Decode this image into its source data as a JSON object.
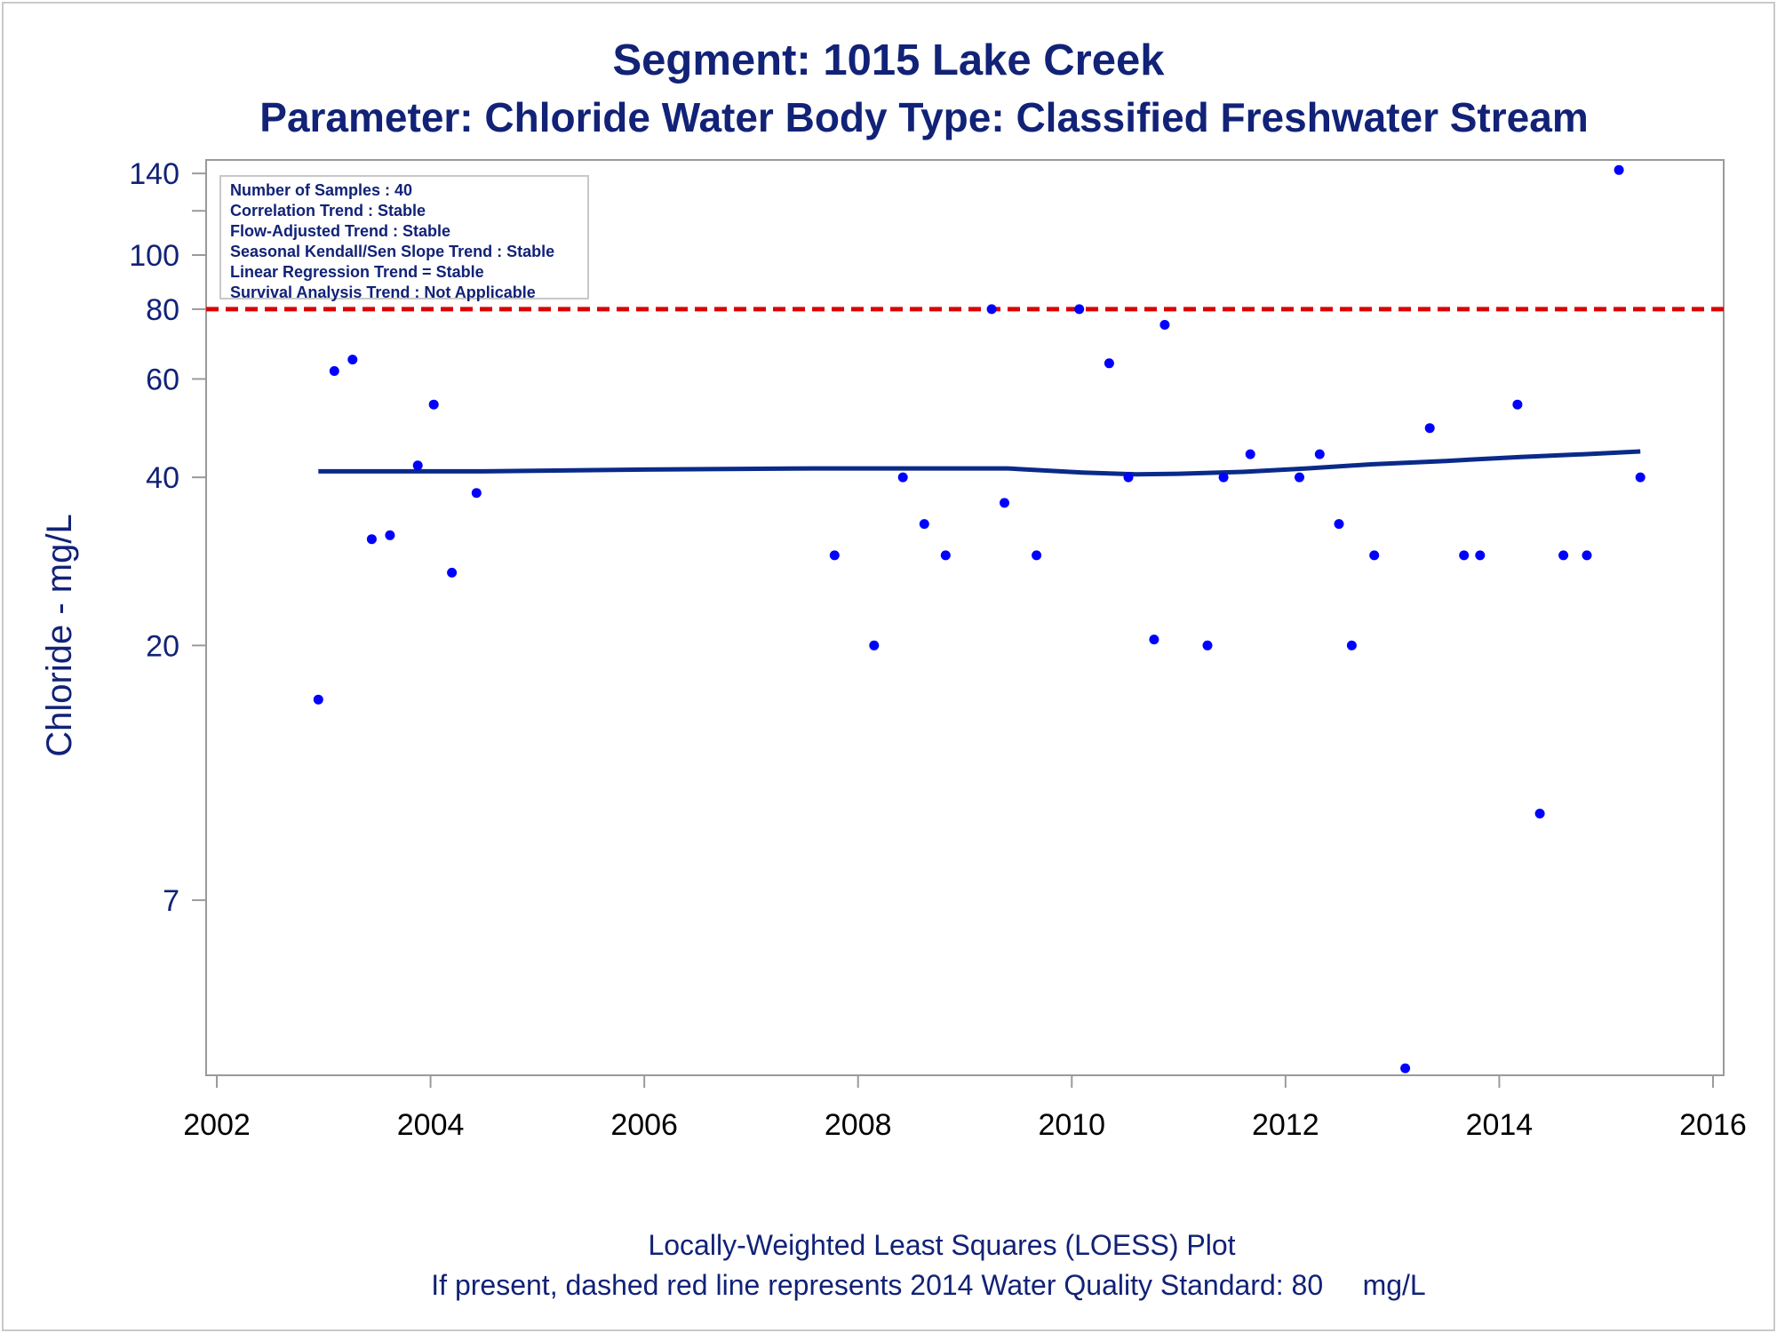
{
  "title": "Segment: 1015  Lake Creek",
  "subtitle": "Parameter: Chloride   Water Body Type: Classified Freshwater Stream",
  "stats_box": [
    "Number of Samples : 40",
    "Correlation Trend : Stable",
    "Flow-Adjusted Trend : Stable",
    "Seasonal Kendall/Sen Slope Trend : Stable",
    "Linear Regression Trend = Stable",
    "Survival Analysis Trend : Not Applicable"
  ],
  "footnote_1": "Locally-Weighted Least Squares (LOESS) Plot",
  "footnote_2": "If present, dashed red line represents 2014 Water Quality Standard: 80     mg/L",
  "colors": {
    "text": "#112277",
    "points": "#0000ff",
    "loess": "#0a2a8a",
    "standard": "#dd0000",
    "axis": "#9a9a9a"
  },
  "chart_data": {
    "type": "scatter",
    "xlabel": "",
    "ylabel": "Chloride - mg/L",
    "x_scale": "linear (year)",
    "y_scale": "log",
    "xlim": [
      2001.9,
      2016.1
    ],
    "ylim": [
      3.4,
      148
    ],
    "x_ticks": [
      "2002",
      "2004",
      "2006",
      "2008",
      "2010",
      "2012",
      "2014",
      "2016"
    ],
    "y_ticks": [
      {
        "value": 7,
        "label": "7"
      },
      {
        "value": 20,
        "label": "20"
      },
      {
        "value": 40,
        "label": "40"
      },
      {
        "value": 60,
        "label": "60"
      },
      {
        "value": 80,
        "label": "80"
      },
      {
        "value": 100,
        "label": "100"
      },
      {
        "value": 120,
        "label": ""
      },
      {
        "value": 140,
        "label": "140"
      }
    ],
    "grid": false,
    "reference_line": {
      "value": 80,
      "style": "dashed"
    },
    "series": [
      {
        "type": "scatter",
        "points": [
          [
            2002.95,
            16
          ],
          [
            2003.1,
            62
          ],
          [
            2003.27,
            65
          ],
          [
            2003.45,
            31
          ],
          [
            2003.62,
            31.5
          ],
          [
            2003.88,
            42
          ],
          [
            2004.03,
            54
          ],
          [
            2004.2,
            27
          ],
          [
            2004.43,
            37.5
          ],
          [
            2007.78,
            29
          ],
          [
            2008.15,
            20
          ],
          [
            2008.42,
            40
          ],
          [
            2008.62,
            33
          ],
          [
            2008.82,
            29
          ],
          [
            2009.25,
            80
          ],
          [
            2009.37,
            36
          ],
          [
            2009.67,
            29
          ],
          [
            2010.07,
            80
          ],
          [
            2010.35,
            64
          ],
          [
            2010.53,
            40
          ],
          [
            2010.77,
            20.5
          ],
          [
            2010.87,
            75
          ],
          [
            2011.27,
            20
          ],
          [
            2011.42,
            40
          ],
          [
            2011.67,
            44
          ],
          [
            2012.13,
            40
          ],
          [
            2012.32,
            44
          ],
          [
            2012.5,
            33
          ],
          [
            2012.62,
            20
          ],
          [
            2012.83,
            29
          ],
          [
            2013.12,
            3.5
          ],
          [
            2013.35,
            49
          ],
          [
            2013.67,
            29
          ],
          [
            2013.82,
            29
          ],
          [
            2014.17,
            54
          ],
          [
            2014.38,
            10
          ],
          [
            2014.6,
            29
          ],
          [
            2014.82,
            29
          ],
          [
            2015.12,
            142
          ],
          [
            2015.32,
            40
          ]
        ]
      },
      {
        "type": "line",
        "points": [
          [
            2002.95,
            41
          ],
          [
            2004.5,
            41
          ],
          [
            2006.0,
            41.3
          ],
          [
            2007.6,
            41.5
          ],
          [
            2009.4,
            41.5
          ],
          [
            2010.1,
            40.8
          ],
          [
            2010.6,
            40.5
          ],
          [
            2011.0,
            40.6
          ],
          [
            2011.6,
            40.9
          ],
          [
            2012.2,
            41.5
          ],
          [
            2012.8,
            42.2
          ],
          [
            2013.5,
            42.8
          ],
          [
            2014.2,
            43.5
          ],
          [
            2014.8,
            44
          ],
          [
            2015.32,
            44.5
          ]
        ]
      }
    ]
  }
}
